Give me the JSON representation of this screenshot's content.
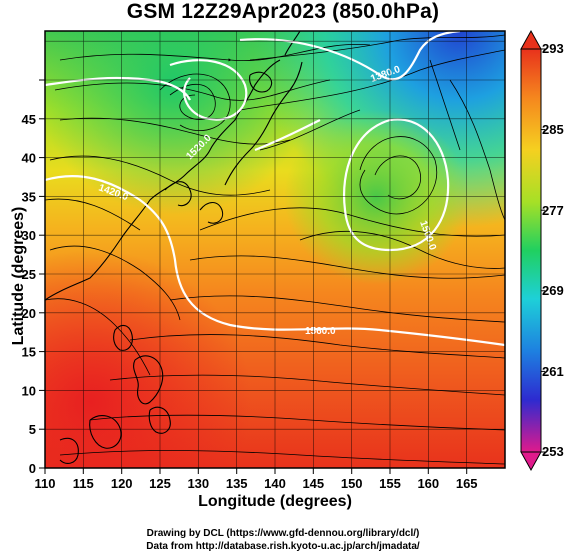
{
  "title": "GSM 12Z29Apr2023 (850.0hPa)",
  "xaxis": {
    "label": "Longitude (degrees)",
    "ticks": [
      "110",
      "115",
      "120",
      "125",
      "130",
      "135",
      "140",
      "145",
      "150",
      "155",
      "160",
      "165"
    ],
    "range": [
      110,
      170
    ]
  },
  "yaxis": {
    "label": "Latitude  (degrees)",
    "ticks": [
      "0",
      "5",
      "10",
      "15",
      "20",
      "25",
      "30",
      "35",
      "40",
      "45"
    ],
    "range": [
      0,
      50
    ]
  },
  "colorbar": {
    "labels": [
      "293",
      "285",
      "277",
      "269",
      "261",
      "253"
    ],
    "range": [
      253,
      293
    ],
    "colors": [
      "#e01a8c",
      "#2d2bd0",
      "#1e7fe0",
      "#1ed0e0",
      "#20d060",
      "#a0e020",
      "#f5d020",
      "#f58a20",
      "#e83020"
    ]
  },
  "contours": [
    {
      "label": "1560.0"
    },
    {
      "label": "1500.0"
    },
    {
      "label": "1420.0"
    },
    {
      "label": "1380.0"
    },
    {
      "label": "1520.0"
    }
  ],
  "credits": {
    "line1": "Drawing by DCL (https://www.gfd-dennou.org/library/dcl/)",
    "line2": "Data from http://database.rish.kyoto-u.ac.jp/arch/jmadata/"
  }
}
